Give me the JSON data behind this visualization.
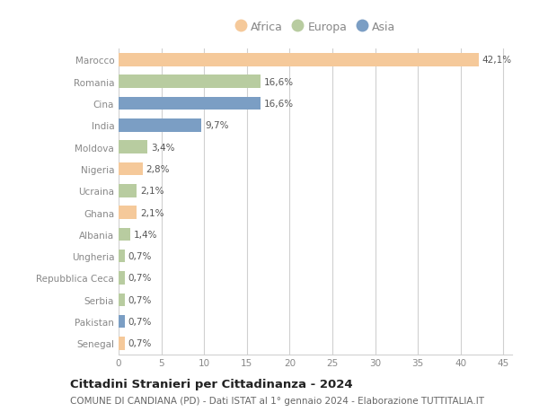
{
  "countries": [
    "Marocco",
    "Romania",
    "Cina",
    "India",
    "Moldova",
    "Nigeria",
    "Ucraina",
    "Ghana",
    "Albania",
    "Ungheria",
    "Repubblica Ceca",
    "Serbia",
    "Pakistan",
    "Senegal"
  ],
  "values": [
    42.1,
    16.6,
    16.6,
    9.7,
    3.4,
    2.8,
    2.1,
    2.1,
    1.4,
    0.7,
    0.7,
    0.7,
    0.7,
    0.7
  ],
  "labels": [
    "42,1%",
    "16,6%",
    "16,6%",
    "9,7%",
    "3,4%",
    "2,8%",
    "2,1%",
    "2,1%",
    "1,4%",
    "0,7%",
    "0,7%",
    "0,7%",
    "0,7%",
    "0,7%"
  ],
  "continents": [
    "Africa",
    "Europa",
    "Asia",
    "Asia",
    "Europa",
    "Africa",
    "Europa",
    "Africa",
    "Europa",
    "Europa",
    "Europa",
    "Europa",
    "Asia",
    "Africa"
  ],
  "continent_colors": {
    "Africa": "#F5C99A",
    "Europa": "#B8CCA0",
    "Asia": "#7B9EC4"
  },
  "legend_items": [
    "Africa",
    "Europa",
    "Asia"
  ],
  "xlim": [
    0,
    46
  ],
  "xticks": [
    0,
    5,
    10,
    15,
    20,
    25,
    30,
    35,
    40,
    45
  ],
  "title": "Cittadini Stranieri per Cittadinanza - 2024",
  "subtitle": "COMUNE DI CANDIANA (PD) - Dati ISTAT al 1° gennaio 2024 - Elaborazione TUTTITALIA.IT",
  "bg_color": "#ffffff",
  "grid_color": "#d0d0d0",
  "bar_height": 0.6,
  "label_fontsize": 7.5,
  "tick_label_fontsize": 7.5,
  "title_fontsize": 9.5,
  "subtitle_fontsize": 7.5,
  "legend_fontsize": 9
}
